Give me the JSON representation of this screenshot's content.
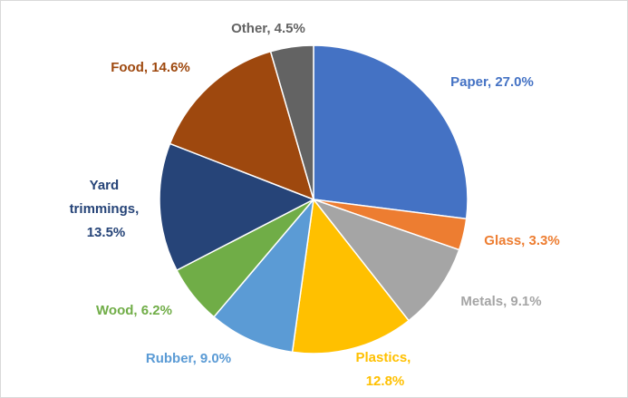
{
  "chart_data": {
    "type": "pie",
    "values": [
      27.0,
      3.3,
      9.1,
      12.8,
      9.0,
      6.2,
      13.5,
      14.6,
      4.5
    ],
    "value_labels": [
      "Paper, 27.0%",
      "Glass, 3.3%",
      "Metals, 9.1%",
      "Plastics, 12.8%",
      "Rubber, 9.0%",
      "Wood, 6.2%",
      "Yard trimmings, 13.5%",
      "Food, 14.6%",
      "Other, 4.5%"
    ],
    "colors": [
      "#4472c4",
      "#ed7d31",
      "#a5a5a5",
      "#ffc000",
      "#5b9bd5",
      "#70ad47",
      "#264478",
      "#9e480e",
      "#636363"
    ]
  }
}
